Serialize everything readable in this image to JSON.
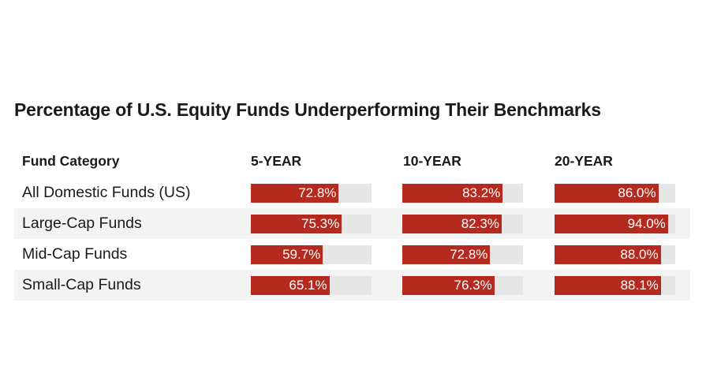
{
  "title": "Percentage of U.S. Equity Funds Underperforming Their Benchmarks",
  "header": {
    "category": "Fund Category",
    "periods": [
      "5-YEAR",
      "10-YEAR",
      "20-YEAR"
    ]
  },
  "colors": {
    "bar": "#b52a1f",
    "track": "#e6e6e6",
    "alt_row": "#f3f3f3"
  },
  "chart_data": {
    "type": "table",
    "title": "Percentage of U.S. Equity Funds Underperforming Their Benchmarks",
    "columns": [
      "Fund Category",
      "5-YEAR",
      "10-YEAR",
      "20-YEAR"
    ],
    "value_range": [
      0,
      100
    ],
    "rows": [
      {
        "category": "All Domestic Funds (US)",
        "values": [
          72.8,
          83.2,
          86.0
        ],
        "labels": [
          "72.8%",
          "83.2%",
          "86.0%"
        ]
      },
      {
        "category": "Large-Cap Funds",
        "values": [
          75.3,
          82.3,
          94.0
        ],
        "labels": [
          "75.3%",
          "82.3%",
          "94.0%"
        ]
      },
      {
        "category": "Mid-Cap Funds",
        "values": [
          59.7,
          72.8,
          88.0
        ],
        "labels": [
          "59.7%",
          "72.8%",
          "88.0%"
        ]
      },
      {
        "category": "Small-Cap Funds",
        "values": [
          65.1,
          76.3,
          88.1
        ],
        "labels": [
          "65.1%",
          "76.3%",
          "88.1%"
        ]
      }
    ]
  }
}
